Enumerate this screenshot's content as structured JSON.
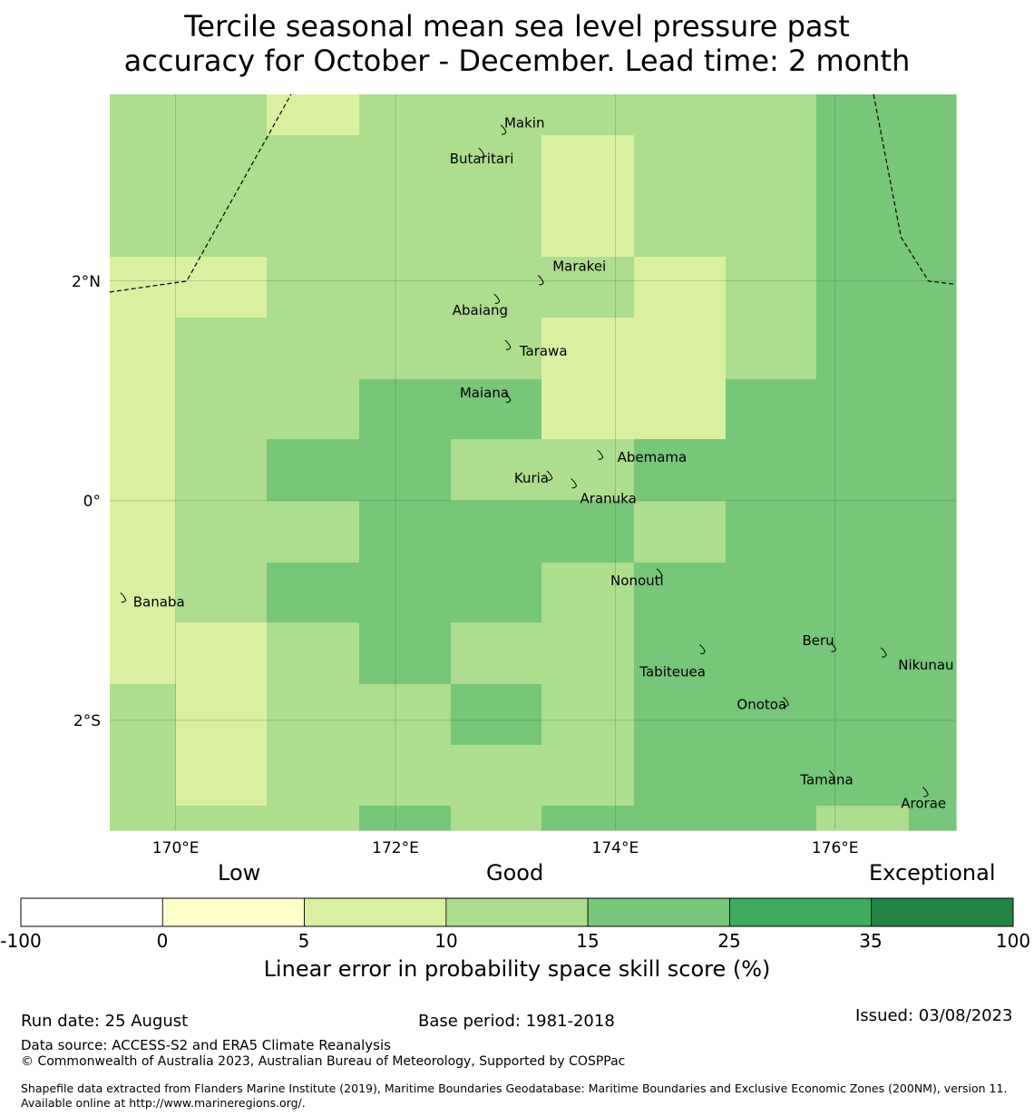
{
  "title": {
    "line1": "Tercile seasonal mean sea level pressure past",
    "line2": "accuracy for October - December. Lead time: 2 month"
  },
  "map": {
    "lon_range": [
      169.4,
      177.1
    ],
    "lat_range": [
      -3.0,
      3.7
    ],
    "lon_ticks": [
      {
        "value": 170,
        "label": "170°E"
      },
      {
        "value": 172,
        "label": "172°E"
      },
      {
        "value": 174,
        "label": "174°E"
      },
      {
        "value": 176,
        "label": "176°E"
      }
    ],
    "lat_ticks": [
      {
        "value": 2,
        "label": "2°N"
      },
      {
        "value": 0,
        "label": "0°"
      },
      {
        "value": -2,
        "label": "2°S"
      }
    ],
    "grid_lines": true,
    "cell_lon_edges": [
      169.4,
      170.0,
      170.83,
      171.67,
      172.5,
      173.33,
      174.17,
      175.0,
      175.83,
      176.67,
      177.1
    ],
    "cell_lat_edges": [
      3.7,
      3.33,
      2.22,
      1.67,
      1.11,
      0.56,
      0.0,
      -0.56,
      -1.11,
      -1.67,
      -2.22,
      -2.78,
      -3.0
    ],
    "skill_class_grid": [
      [
        3,
        3,
        2,
        3,
        3,
        3,
        3,
        3,
        4,
        4
      ],
      [
        3,
        3,
        3,
        3,
        3,
        2,
        3,
        3,
        4,
        4
      ],
      [
        2,
        2,
        3,
        3,
        3,
        3,
        2,
        3,
        4,
        4
      ],
      [
        2,
        3,
        3,
        3,
        3,
        2,
        2,
        3,
        4,
        4
      ],
      [
        2,
        3,
        3,
        4,
        4,
        2,
        2,
        4,
        4,
        4
      ],
      [
        2,
        3,
        4,
        4,
        3,
        3,
        4,
        4,
        4,
        4
      ],
      [
        2,
        3,
        3,
        4,
        4,
        4,
        3,
        4,
        4,
        4
      ],
      [
        2,
        3,
        4,
        4,
        4,
        3,
        4,
        4,
        4,
        4
      ],
      [
        2,
        2,
        3,
        4,
        3,
        3,
        4,
        4,
        4,
        4
      ],
      [
        3,
        2,
        3,
        3,
        4,
        3,
        4,
        4,
        4,
        4
      ],
      [
        3,
        2,
        3,
        3,
        3,
        3,
        4,
        4,
        4,
        4
      ],
      [
        3,
        3,
        3,
        4,
        3,
        4,
        4,
        4,
        3,
        4
      ]
    ],
    "eez_boundary_west": [
      [
        169.4,
        1.9
      ],
      [
        170.1,
        2.0
      ],
      [
        171.05,
        3.7
      ]
    ],
    "eez_boundary_east": [
      [
        176.35,
        3.7
      ],
      [
        176.6,
        2.4
      ],
      [
        176.85,
        2.0
      ],
      [
        177.1,
        1.97
      ]
    ],
    "islands": [
      {
        "name": "Makin",
        "lon": 172.99,
        "lat": 3.38
      },
      {
        "name": "Butaritari",
        "lon": 172.79,
        "lat": 3.17
      },
      {
        "name": "Marakei",
        "lon": 173.33,
        "lat": 2.01
      },
      {
        "name": "Abaiang",
        "lon": 172.93,
        "lat": 1.84
      },
      {
        "name": "Tarawa",
        "lon": 173.03,
        "lat": 1.42
      },
      {
        "name": "Maiana",
        "lon": 173.03,
        "lat": 0.94
      },
      {
        "name": "Abemama",
        "lon": 173.87,
        "lat": 0.42
      },
      {
        "name": "Kuria",
        "lon": 173.41,
        "lat": 0.23
      },
      {
        "name": "Aranuka",
        "lon": 173.63,
        "lat": 0.16
      },
      {
        "name": "Banaba",
        "lon": 169.53,
        "lat": -0.88
      },
      {
        "name": "Nonouti",
        "lon": 174.41,
        "lat": -0.66
      },
      {
        "name": "Tabiteuea",
        "lon": 174.8,
        "lat": -1.35
      },
      {
        "name": "Beru",
        "lon": 175.99,
        "lat": -1.33
      },
      {
        "name": "Nikunau",
        "lon": 176.45,
        "lat": -1.38
      },
      {
        "name": "Onotoa",
        "lon": 175.56,
        "lat": -1.83
      },
      {
        "name": "Tamana",
        "lon": 175.98,
        "lat": -2.5
      },
      {
        "name": "Arorae",
        "lon": 176.83,
        "lat": -2.65
      }
    ]
  },
  "colorbar": {
    "headers": {
      "low": "Low",
      "good": "Good",
      "exceptional": "Exceptional"
    },
    "bins": [
      {
        "from": -100,
        "to": 0,
        "color": "#ffffff"
      },
      {
        "from": 0,
        "to": 5,
        "color": "#ffffcc"
      },
      {
        "from": 5,
        "to": 10,
        "color": "#d9f0a3"
      },
      {
        "from": 10,
        "to": 15,
        "color": "#addd8e"
      },
      {
        "from": 15,
        "to": 25,
        "color": "#78c679"
      },
      {
        "from": 25,
        "to": 35,
        "color": "#41ab5d"
      },
      {
        "from": 35,
        "to": 100,
        "color": "#238443"
      }
    ],
    "tick_labels": [
      "-100",
      "0",
      "5",
      "10",
      "15",
      "25",
      "35",
      "100"
    ],
    "label": "Linear error in probability space skill score (%)"
  },
  "footer": {
    "run_date": "Run date: 25 August",
    "base_period": "Base period: 1981-2018",
    "issued": "Issued: 03/08/2023",
    "data_source": "Data source: ACCESS-S2 and ERA5 Climate Reanalysis",
    "copyright": "© Commonwealth of Australia 2023, Australian Bureau of Meteorology, Supported by COSPPac",
    "shapefile": "Shapefile data extracted from Flanders Marine Institute (2019), Maritime Boundaries Geodatabase: Maritime Boundaries and Exclusive Economic Zones (200NM), version 11. Available online at http://www.marineregions.org/."
  }
}
